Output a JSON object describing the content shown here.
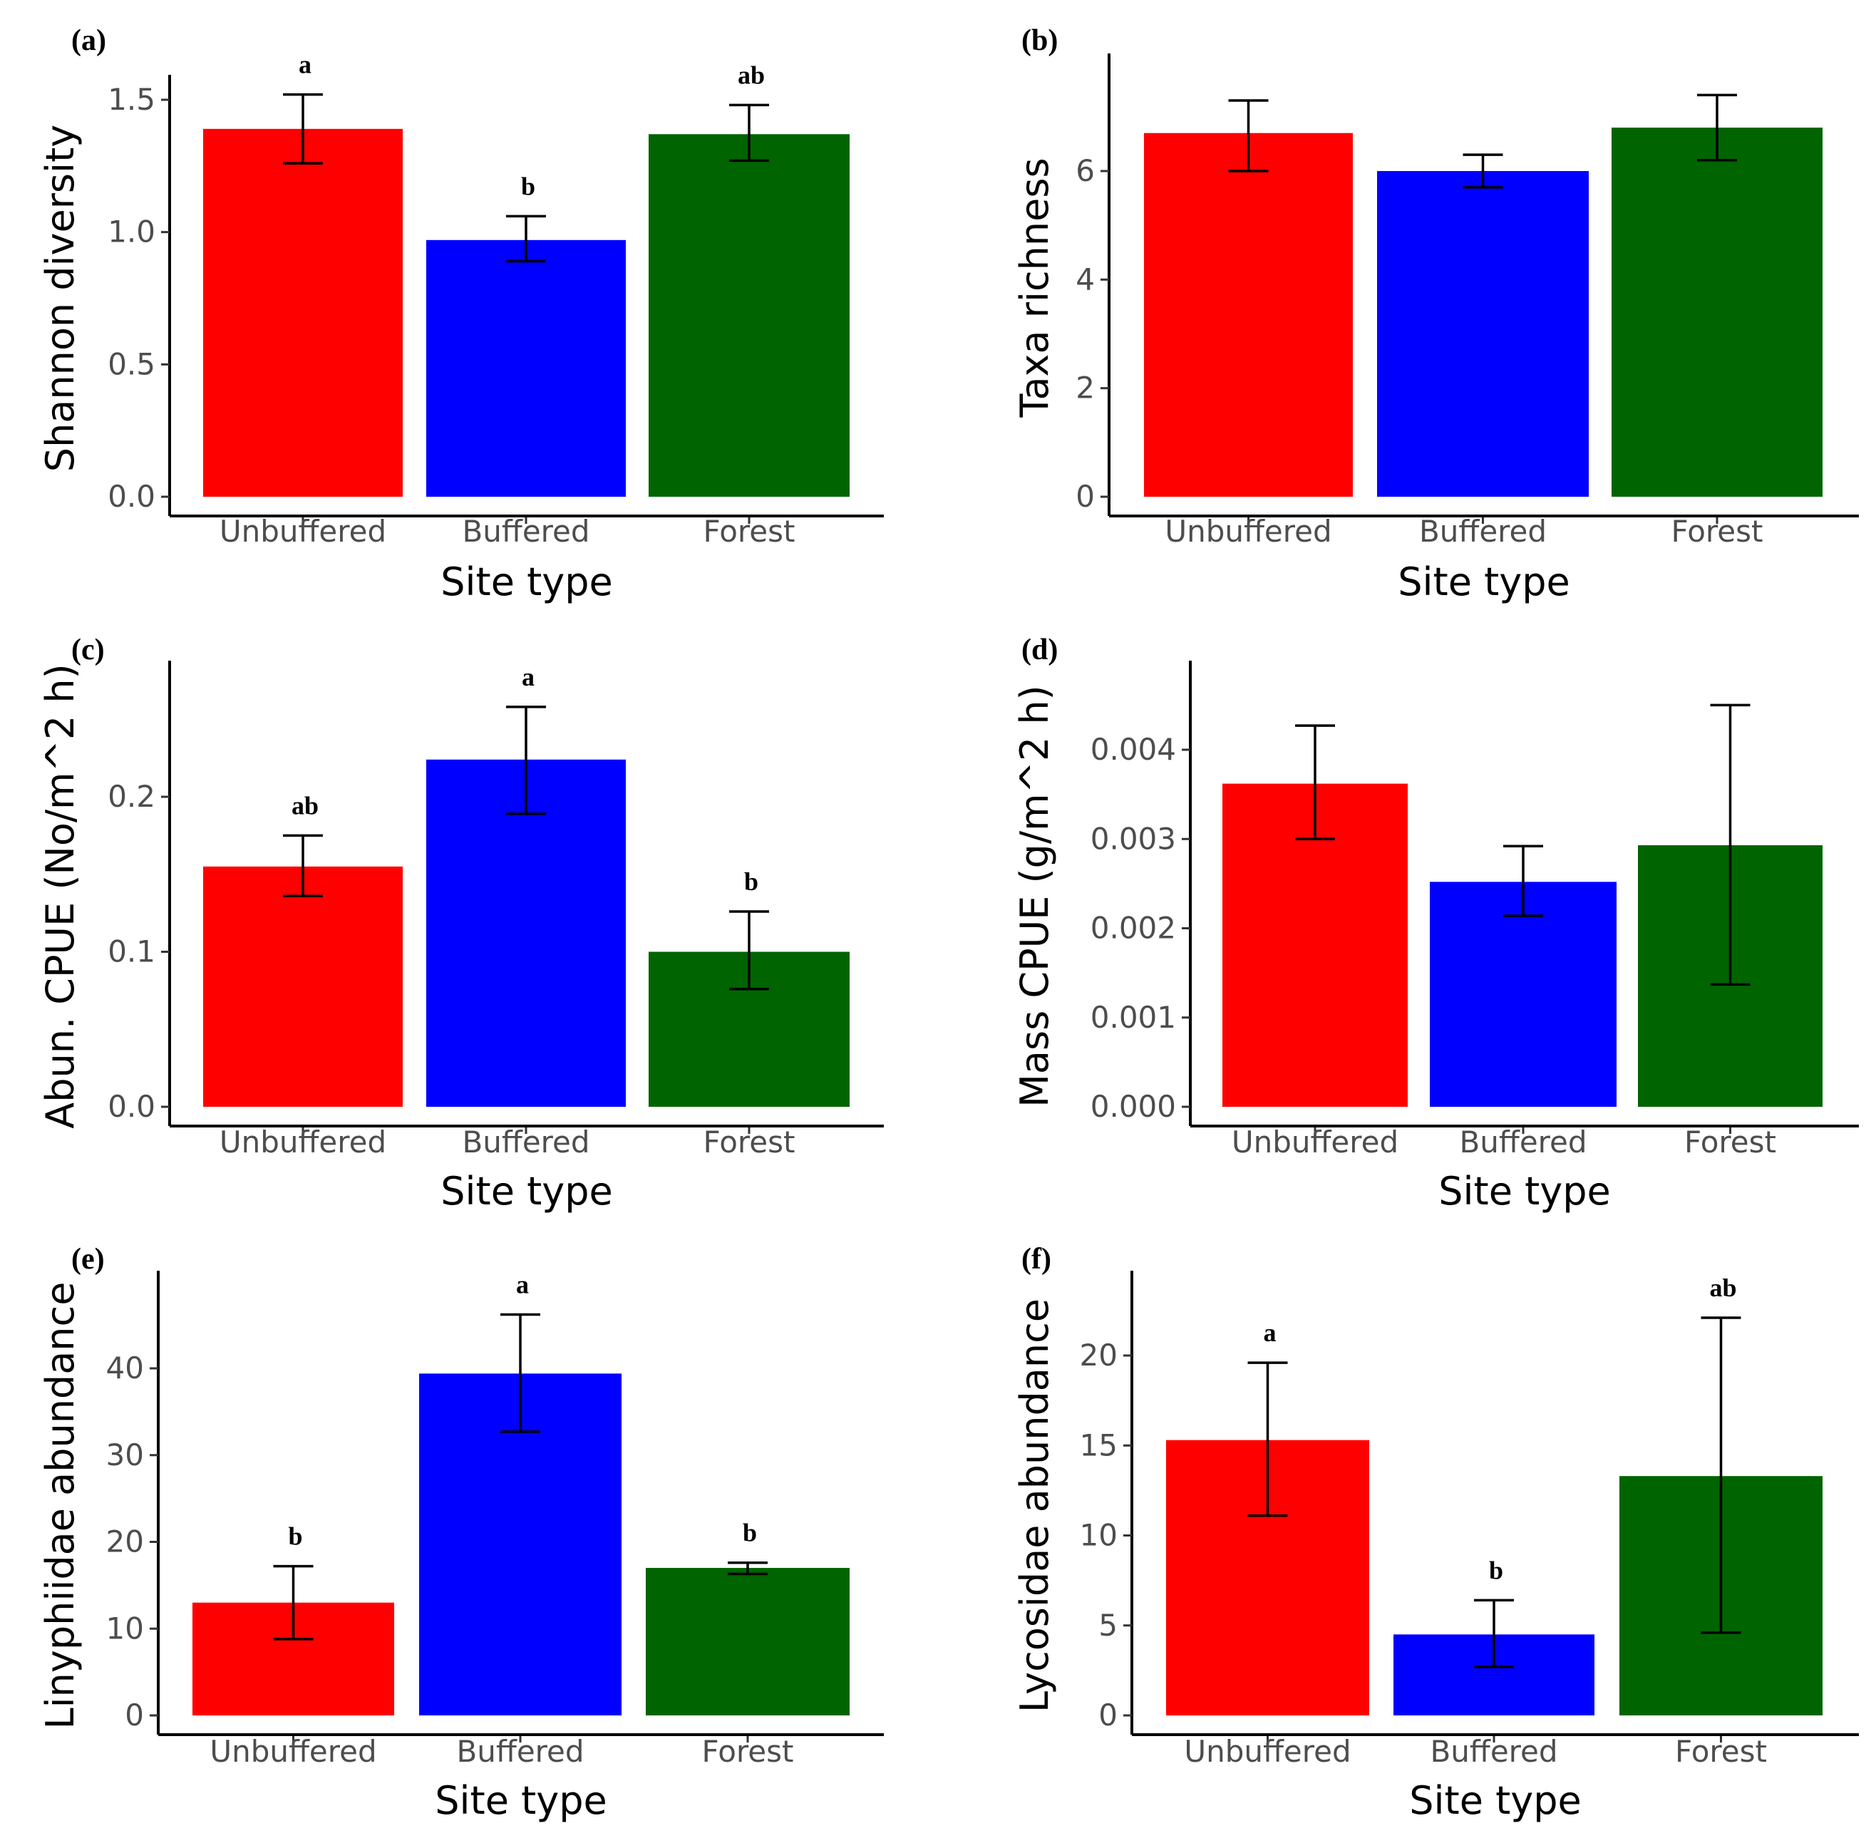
{
  "chart_data": [
    {
      "type": "bar",
      "panel": "(a)",
      "categories": [
        "Unbuffered",
        "Buffered",
        "Forest"
      ],
      "values": [
        1.39,
        0.97,
        1.37
      ],
      "errors_low": [
        1.26,
        0.89,
        1.27
      ],
      "errors_high": [
        1.52,
        1.06,
        1.48
      ],
      "letters": [
        "a",
        "b",
        "ab"
      ],
      "xlabel": "Site type",
      "ylabel": "Shannon diversity",
      "yticks": [
        0.0,
        0.5,
        1.0,
        1.5
      ],
      "ytick_labels": [
        "0.0",
        "0.5",
        "1.0",
        "1.5"
      ],
      "ylim": [
        0,
        1.5
      ]
    },
    {
      "type": "bar",
      "panel": "(b)",
      "categories": [
        "Unbuffered",
        "Buffered",
        "Forest"
      ],
      "values": [
        6.7,
        6.0,
        6.8
      ],
      "errors_low": [
        6.0,
        5.7,
        6.2
      ],
      "errors_high": [
        7.3,
        6.3,
        7.4
      ],
      "letters": [
        "",
        "",
        ""
      ],
      "xlabel": "Site type",
      "ylabel": "Taxa richness",
      "yticks": [
        0,
        2,
        4,
        6
      ],
      "ytick_labels": [
        "0",
        "2",
        "4",
        "6"
      ],
      "ylim": [
        0,
        6
      ]
    },
    {
      "type": "bar",
      "panel": "(c)",
      "categories": [
        "Unbuffered",
        "Buffered",
        "Forest"
      ],
      "values": [
        0.155,
        0.224,
        0.1
      ],
      "errors_low": [
        0.136,
        0.189,
        0.076
      ],
      "errors_high": [
        0.175,
        0.258,
        0.126
      ],
      "letters": [
        "ab",
        "a",
        "b"
      ],
      "xlabel": "Site type",
      "ylabel": "Abun. CPUE (No/m^2 h)",
      "yticks": [
        0.0,
        0.1,
        0.2
      ],
      "ytick_labels": [
        "0.0",
        "0.1",
        "0.2"
      ],
      "ylim": [
        0,
        0.2
      ]
    },
    {
      "type": "bar",
      "panel": "(d)",
      "categories": [
        "Unbuffered",
        "Buffered",
        "Forest"
      ],
      "values": [
        0.00362,
        0.00252,
        0.00293
      ],
      "errors_low": [
        0.003,
        0.00214,
        0.00137
      ],
      "errors_high": [
        0.00427,
        0.00292,
        0.0045
      ],
      "letters": [
        "",
        "",
        ""
      ],
      "xlabel": "Site type",
      "ylabel": "Mass CPUE (g/m^2 h)",
      "yticks": [
        0.0,
        0.001,
        0.002,
        0.003,
        0.004
      ],
      "ytick_labels": [
        "0.000",
        "0.001",
        "0.002",
        "0.003",
        "0.004"
      ],
      "ylim": [
        0,
        0.004
      ]
    },
    {
      "type": "bar",
      "panel": "(e)",
      "categories": [
        "Unbuffered",
        "Buffered",
        "Forest"
      ],
      "values": [
        13.0,
        39.4,
        17.0
      ],
      "errors_low": [
        8.8,
        32.7,
        16.3
      ],
      "errors_high": [
        17.2,
        46.2,
        17.6
      ],
      "letters": [
        "b",
        "a",
        "b"
      ],
      "xlabel": "Site type",
      "ylabel": "Linyphiidae abundance",
      "yticks": [
        0,
        10,
        20,
        30,
        40
      ],
      "ytick_labels": [
        "0",
        "10",
        "20",
        "30",
        "40"
      ],
      "ylim": [
        0,
        40
      ]
    },
    {
      "type": "bar",
      "panel": "(f)",
      "categories": [
        "Unbuffered",
        "Buffered",
        "Forest"
      ],
      "values": [
        15.3,
        4.5,
        13.3
      ],
      "errors_low": [
        11.1,
        2.7,
        4.6
      ],
      "errors_high": [
        19.6,
        6.4,
        22.1
      ],
      "letters": [
        "a",
        "b",
        "ab"
      ],
      "xlabel": "Site type",
      "ylabel": "Lycosidae abundance",
      "yticks": [
        0,
        5,
        10,
        15,
        20
      ],
      "ytick_labels": [
        "0",
        "5",
        "10",
        "15",
        "20"
      ],
      "ylim": [
        0,
        20
      ]
    }
  ],
  "colors": {
    "Unbuffered": "#ff0000",
    "Buffered": "#0000ff",
    "Forest": "#006400"
  }
}
